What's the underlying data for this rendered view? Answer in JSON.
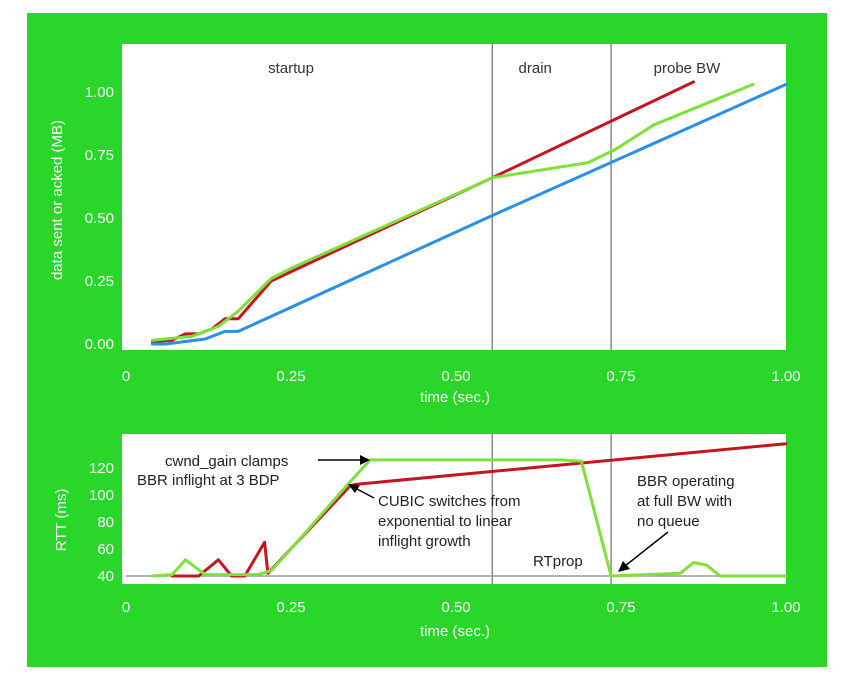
{
  "chart_data": [
    {
      "type": "line",
      "xlabel": "time (sec.)",
      "ylabel": "data sent or acked (MB)",
      "xlim": [
        0,
        1.0
      ],
      "ylim": [
        0,
        1.1
      ],
      "x_ticks": [
        "0",
        "0.25",
        "0.50",
        "0.75",
        "1.00"
      ],
      "y_ticks": [
        "0.00",
        "0.25",
        "0.50",
        "0.75",
        "1.00"
      ],
      "phases": [
        {
          "label": "startup",
          "x_center": 0.25
        },
        {
          "label": "drain",
          "x_center": 0.62
        },
        {
          "label": "probe BW",
          "x_center": 0.85
        }
      ],
      "vlines": [
        0.555,
        0.735
      ],
      "series": [
        {
          "color": "#c8141e",
          "points": [
            [
              0.04,
              0.01
            ],
            [
              0.07,
              0.015
            ],
            [
              0.09,
              0.04
            ],
            [
              0.11,
              0.04
            ],
            [
              0.13,
              0.06
            ],
            [
              0.15,
              0.1
            ],
            [
              0.17,
              0.1
            ],
            [
              0.22,
              0.25
            ],
            [
              0.555,
              0.66
            ],
            [
              0.86,
              1.04
            ]
          ]
        },
        {
          "color": "#7ee03a",
          "points": [
            [
              0.04,
              0.015
            ],
            [
              0.1,
              0.03
            ],
            [
              0.14,
              0.07
            ],
            [
              0.17,
              0.13
            ],
            [
              0.22,
              0.26
            ],
            [
              0.25,
              0.3
            ],
            [
              0.555,
              0.66
            ],
            [
              0.7,
              0.72
            ],
            [
              0.74,
              0.77
            ],
            [
              0.8,
              0.87
            ],
            [
              0.95,
              1.03
            ]
          ]
        },
        {
          "color": "#2a8fe6",
          "points": [
            [
              0.04,
              0.0
            ],
            [
              0.06,
              0.0
            ],
            [
              0.09,
              0.01
            ],
            [
              0.12,
              0.02
            ],
            [
              0.15,
              0.05
            ],
            [
              0.17,
              0.05
            ],
            [
              0.555,
              0.51
            ],
            [
              1.0,
              1.03
            ]
          ]
        }
      ]
    },
    {
      "type": "line",
      "xlabel": "time (sec.)",
      "ylabel": "RTT (ms)",
      "xlim": [
        0,
        1.0
      ],
      "ylim": [
        35,
        140
      ],
      "x_ticks": [
        "0",
        "0.25",
        "0.50",
        "0.75",
        "1.00"
      ],
      "y_ticks": [
        "40",
        "60",
        "80",
        "100",
        "120"
      ],
      "vlines": [
        0.555,
        0.735
      ],
      "baseline": 40,
      "series": [
        {
          "color": "#c8141e",
          "points": [
            [
              0.07,
              40
            ],
            [
              0.11,
              40
            ],
            [
              0.14,
              52
            ],
            [
              0.16,
              40
            ],
            [
              0.18,
              40
            ],
            [
              0.21,
              65
            ],
            [
              0.215,
              42
            ],
            [
              0.34,
              107
            ],
            [
              0.35,
              108
            ],
            [
              1.0,
              138
            ]
          ]
        },
        {
          "color": "#7ee03a",
          "points": [
            [
              0.04,
              40
            ],
            [
              0.07,
              41
            ],
            [
              0.09,
              52
            ],
            [
              0.12,
              41
            ],
            [
              0.2,
              41
            ],
            [
              0.22,
              44
            ],
            [
              0.25,
              60
            ],
            [
              0.34,
              110
            ],
            [
              0.37,
              126
            ],
            [
              0.66,
              126
            ],
            [
              0.69,
              125
            ],
            [
              0.735,
              40
            ],
            [
              0.84,
              42
            ],
            [
              0.86,
              50
            ],
            [
              0.88,
              48
            ],
            [
              0.9,
              40
            ],
            [
              1.0,
              40
            ]
          ]
        }
      ],
      "annotations": [
        {
          "lines": [
            "cwnd_gain clamps",
            "BBR inflight at 3 BDP"
          ]
        },
        {
          "lines": [
            "CUBIC switches from",
            "exponential to linear",
            "inflight growth"
          ]
        },
        {
          "lines": [
            "RTprop"
          ]
        },
        {
          "lines": [
            "BBR operating",
            "at full BW with",
            "no queue"
          ]
        }
      ]
    }
  ]
}
